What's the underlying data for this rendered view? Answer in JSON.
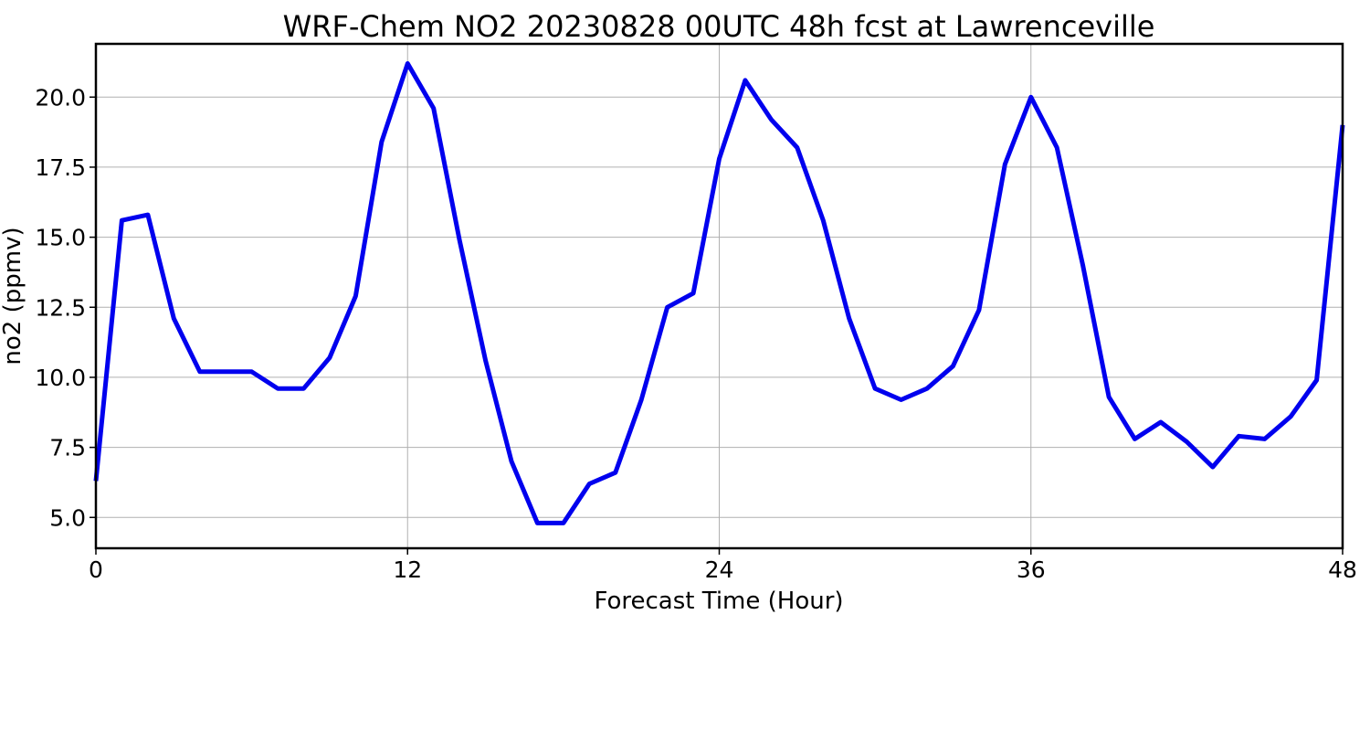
{
  "chart_data": {
    "type": "line",
    "title": "WRF-Chem NO2  20230828 00UTC 48h fcst at Lawrenceville",
    "xlabel": "Forecast Time (Hour)",
    "ylabel": "no2  (ppmv)",
    "xlim": [
      0,
      48
    ],
    "ylim": [
      3.9,
      21.9
    ],
    "xticks": [
      0,
      12,
      24,
      36,
      48
    ],
    "xtick_labels": [
      "0",
      "12",
      "24",
      "36",
      "48"
    ],
    "yticks": [
      5.0,
      7.5,
      10.0,
      12.5,
      15.0,
      17.5,
      20.0
    ],
    "ytick_labels": [
      "5.0",
      "7.5",
      "10.0",
      "12.5",
      "15.0",
      "17.5",
      "20.0"
    ],
    "grid": true,
    "line_color": "#0000ee",
    "series": [
      {
        "x": [
          0,
          1,
          2,
          3,
          4,
          5,
          6,
          7,
          8,
          9,
          10,
          11,
          12,
          13,
          14,
          15,
          16,
          17,
          18,
          19,
          20,
          21,
          22,
          23,
          24,
          25,
          26,
          27,
          28,
          29,
          30,
          31,
          32,
          33,
          34,
          35,
          36,
          37,
          38,
          39,
          40,
          41,
          42,
          43,
          44,
          45,
          46,
          47,
          48
        ],
        "values": [
          6.3,
          15.6,
          15.8,
          12.1,
          10.2,
          10.2,
          10.2,
          9.6,
          9.6,
          10.7,
          12.9,
          18.4,
          21.2,
          19.6,
          14.9,
          10.6,
          7.0,
          4.8,
          4.8,
          6.2,
          6.6,
          9.2,
          12.5,
          13.0,
          17.8,
          20.6,
          19.2,
          18.2,
          15.6,
          12.1,
          9.6,
          9.2,
          9.6,
          10.4,
          12.4,
          17.6,
          20.0,
          18.2,
          14.0,
          9.3,
          7.8,
          8.4,
          7.7,
          6.8,
          7.9,
          7.8,
          8.6,
          9.9,
          19.0
        ]
      }
    ]
  }
}
